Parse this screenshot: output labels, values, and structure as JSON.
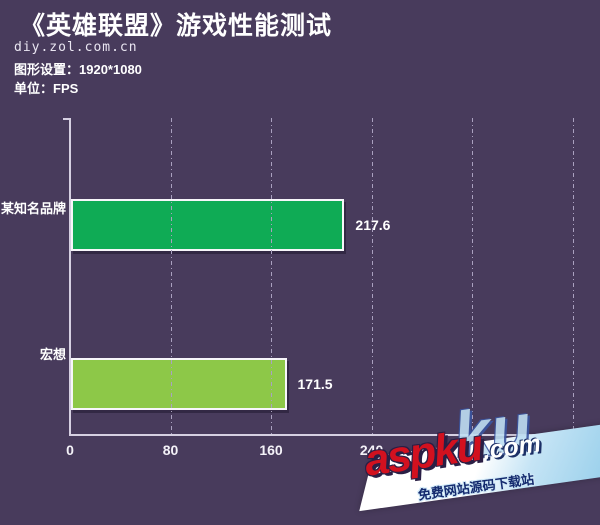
{
  "header": {
    "title": "《英雄联盟》游戏性能测试",
    "site": "diy.zol.com.cn",
    "graphics_setting_label": "图形设置：1920*1080",
    "unit_label": "单位：FPS"
  },
  "chart_data": {
    "type": "bar",
    "orientation": "horizontal",
    "title": "《英雄联盟》游戏性能测试",
    "unit": "FPS",
    "graphics_setting": "1920*1080",
    "categories": [
      "某知名品牌",
      "宏想"
    ],
    "values": [
      217.6,
      171.5
    ],
    "value_labels": [
      "217.6",
      "171.5"
    ],
    "bar_colors": [
      "#0fab55",
      "#8dc848"
    ],
    "x_ticks": [
      0,
      80,
      160,
      240,
      320,
      400
    ],
    "x_tick_labels": [
      "0",
      "80",
      "160",
      "240",
      "320",
      ""
    ],
    "xlim": [
      0,
      422
    ],
    "grid": "vertical-dash-dot",
    "legend": "none"
  },
  "watermark": {
    "ghost": "ku",
    "brand": "aspku",
    "tld": ".com",
    "tagline": "免费网站源码下载站"
  },
  "colors": {
    "background": "#483b5c",
    "bar_famous_brand": "#0fab55",
    "bar_hongxiang": "#8dc848",
    "axis": "#d6d0e2",
    "gridline": "#aaa1c0",
    "text": "#ffffff",
    "watermark_red": "#d2111f",
    "watermark_navy": "#142a6e"
  }
}
